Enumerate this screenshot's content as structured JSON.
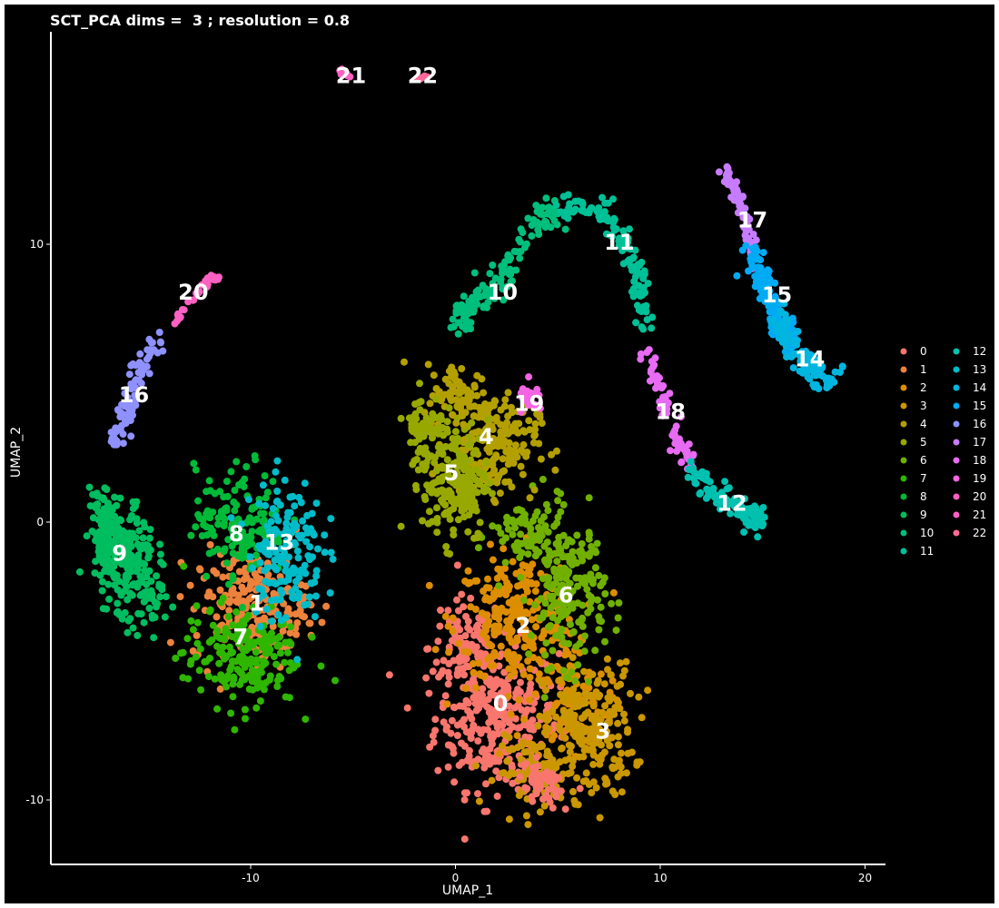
{
  "chart_data": {
    "type": "scatter",
    "title": "SCT_PCA dims =  3 ; resolution = 0.8",
    "xlabel": "UMAP_1",
    "ylabel": "UMAP_2",
    "xlim": [
      -20,
      21
    ],
    "ylim": [
      -12.3,
      17.7
    ],
    "x_ticks": [
      -10,
      0,
      10,
      20
    ],
    "y_ticks": [
      -10,
      0,
      10
    ],
    "grid": false,
    "background": "#000000",
    "legend_position": "right",
    "legend_columns": 2,
    "clusters": [
      {
        "name": "0",
        "color": "#F8766D",
        "label_x": 2.2,
        "label_y": -6.5
      },
      {
        "name": "1",
        "color": "#EC823C",
        "label_x": -9.7,
        "label_y": -2.9
      },
      {
        "name": "2",
        "color": "#DD8D00",
        "label_x": 3.3,
        "label_y": -3.7
      },
      {
        "name": "3",
        "color": "#CA9700",
        "label_x": 7.2,
        "label_y": -7.5
      },
      {
        "name": "4",
        "color": "#B3A000",
        "label_x": 1.5,
        "label_y": 3.1
      },
      {
        "name": "5",
        "color": "#97A900",
        "label_x": -0.2,
        "label_y": 1.8
      },
      {
        "name": "6",
        "color": "#71B000",
        "label_x": 5.4,
        "label_y": -2.6
      },
      {
        "name": "7",
        "color": "#2FB600",
        "label_x": -10.5,
        "label_y": -4.1
      },
      {
        "name": "8",
        "color": "#00BA38",
        "label_x": -10.7,
        "label_y": -0.4
      },
      {
        "name": "9",
        "color": "#00BD5F",
        "label_x": -16.4,
        "label_y": -1.1
      },
      {
        "name": "10",
        "color": "#00BF7D",
        "label_x": 2.3,
        "label_y": 8.3
      },
      {
        "name": "11",
        "color": "#00C097",
        "label_x": 8.0,
        "label_y": 10.1
      },
      {
        "name": "12",
        "color": "#00C0B0",
        "label_x": 13.5,
        "label_y": 0.7
      },
      {
        "name": "13",
        "color": "#00BCC9",
        "label_x": -8.6,
        "label_y": -0.7
      },
      {
        "name": "14",
        "color": "#00B6E0",
        "label_x": 17.3,
        "label_y": 5.9
      },
      {
        "name": "15",
        "color": "#00ABF5",
        "label_x": 15.7,
        "label_y": 8.2
      },
      {
        "name": "16",
        "color": "#8F91FF",
        "label_x": -15.7,
        "label_y": 4.6
      },
      {
        "name": "17",
        "color": "#C77CFF",
        "label_x": 14.5,
        "label_y": 10.9
      },
      {
        "name": "18",
        "color": "#E76BF3",
        "label_x": 10.5,
        "label_y": 4.0
      },
      {
        "name": "19",
        "color": "#F564E3",
        "label_x": 3.6,
        "label_y": 4.3
      },
      {
        "name": "20",
        "color": "#FF61C3",
        "label_x": -12.8,
        "label_y": 8.3
      },
      {
        "name": "21",
        "color": "#FF61C3",
        "label_x": -5.1,
        "label_y": 16.1
      },
      {
        "name": "22",
        "color": "#FF6A98",
        "label_x": -1.6,
        "label_y": 16.1
      }
    ]
  }
}
